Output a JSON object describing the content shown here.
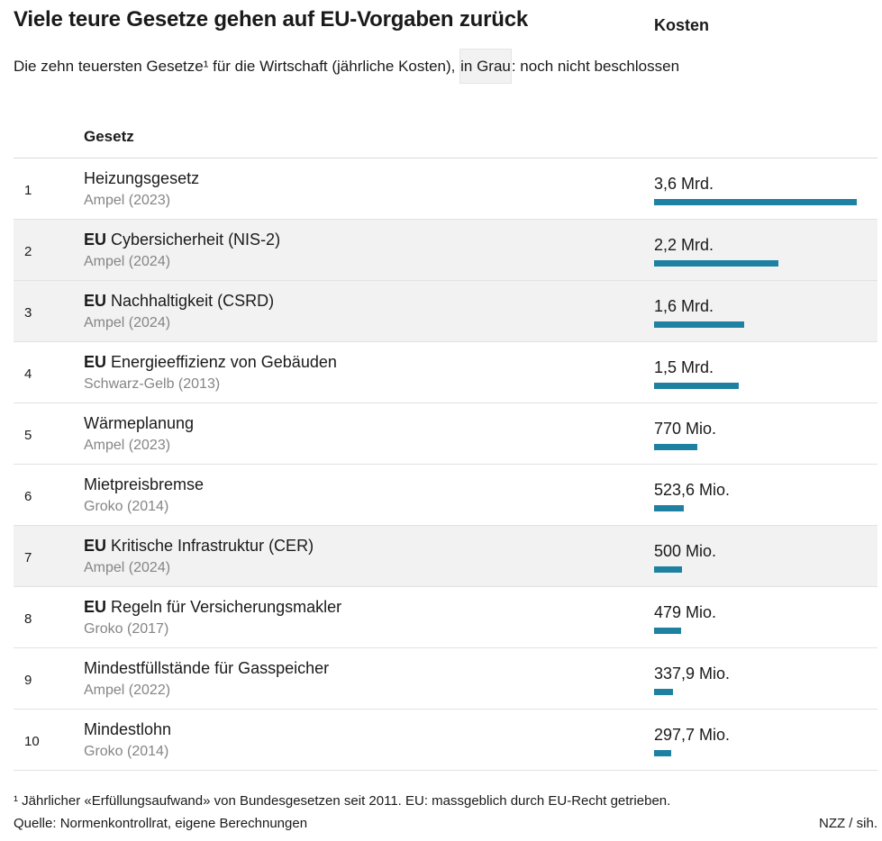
{
  "title": "Viele teure Gesetze gehen auf EU-Vorgaben zurück",
  "subtitle": {
    "before": "Die zehn teuersten Gesetze¹ für die Wirtschaft (jährliche Kosten), ",
    "highlight": "in Grau",
    "after": ": noch nicht beschlossen"
  },
  "columns": {
    "law": "Gesetz",
    "cost": "Kosten"
  },
  "colors": {
    "bar": "#1f81a2",
    "pending_row": "#f2f2f2",
    "secondary_text": "#858585"
  },
  "chart_data": {
    "type": "bar",
    "orientation": "horizontal",
    "title": "Viele teure Gesetze gehen auf EU-Vorgaben zurück",
    "unit": "EUR per year",
    "xlim": [
      0,
      3600000000
    ],
    "rows": [
      {
        "rank": "1",
        "eu": "",
        "name": "Heizungsgesetz",
        "government": "Ampel (2023)",
        "cost_label": "3,6 Mrd.",
        "value": 3600000000,
        "pending": false
      },
      {
        "rank": "2",
        "eu": "EU",
        "name": "Cybersicherheit (NIS-2)",
        "government": "Ampel (2024)",
        "cost_label": "2,2 Mrd.",
        "value": 2200000000,
        "pending": true
      },
      {
        "rank": "3",
        "eu": "EU",
        "name": "Nachhaltigkeit (CSRD)",
        "government": "Ampel (2024)",
        "cost_label": "1,6 Mrd.",
        "value": 1600000000,
        "pending": true
      },
      {
        "rank": "4",
        "eu": "EU",
        "name": "Energieeffizienz von Gebäuden",
        "government": "Schwarz-Gelb (2013)",
        "cost_label": "1,5 Mrd.",
        "value": 1500000000,
        "pending": false
      },
      {
        "rank": "5",
        "eu": "",
        "name": "Wärmeplanung",
        "government": "Ampel (2023)",
        "cost_label": "770 Mio.",
        "value": 770000000,
        "pending": false
      },
      {
        "rank": "6",
        "eu": "",
        "name": "Mietpreisbremse",
        "government": "Groko (2014)",
        "cost_label": "523,6 Mio.",
        "value": 523600000,
        "pending": false
      },
      {
        "rank": "7",
        "eu": "EU",
        "name": "Kritische Infrastruktur (CER)",
        "government": "Ampel (2024)",
        "cost_label": "500 Mio.",
        "value": 500000000,
        "pending": true
      },
      {
        "rank": "8",
        "eu": "EU",
        "name": "Regeln für Versicherungsmakler",
        "government": "Groko (2017)",
        "cost_label": "479 Mio.",
        "value": 479000000,
        "pending": false
      },
      {
        "rank": "9",
        "eu": "",
        "name": "Mindestfüllstände für Gasspeicher",
        "government": "Ampel (2022)",
        "cost_label": "337,9 Mio.",
        "value": 337900000,
        "pending": false
      },
      {
        "rank": "10",
        "eu": "",
        "name": "Mindestlohn",
        "government": "Groko (2014)",
        "cost_label": "297,7 Mio.",
        "value": 297700000,
        "pending": false
      }
    ]
  },
  "footnote": "¹ Jährlicher «Erfüllungsaufwand» von Bundesgesetzen seit 2011. EU: massgeblich durch EU-Recht getrieben.",
  "source": "Quelle: Normenkontrollrat, eigene Berechnungen",
  "credit": "NZZ / sih."
}
